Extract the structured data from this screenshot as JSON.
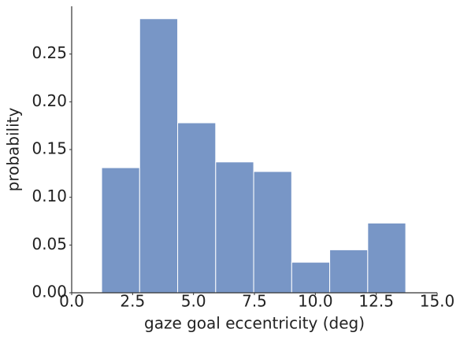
{
  "chart_data": {
    "type": "histogram",
    "xlabel": "gaze goal eccentricity (deg)",
    "ylabel": "probability",
    "bins": [
      1.23,
      2.79,
      4.35,
      5.91,
      7.47,
      9.03,
      10.59,
      12.15,
      13.71
    ],
    "values": [
      0.131,
      0.287,
      0.178,
      0.137,
      0.127,
      0.032,
      0.045,
      0.073
    ],
    "color": "#7896c6",
    "xlim": [
      0,
      15
    ],
    "xticks": [
      {
        "value": 0,
        "label": "0.0"
      },
      2.5,
      {
        "value": 5,
        "label": "5.0"
      },
      7.5,
      {
        "value": 10,
        "label": "10.0"
      },
      12.5,
      {
        "value": 15,
        "label": "15.0"
      }
    ],
    "ylim": [
      0,
      0.3
    ],
    "yticks": [
      {
        "value": 0,
        "label": "0.00"
      },
      {
        "value": 0.05,
        "label": "0.05"
      },
      {
        "value": 0.1,
        "label": "0.10"
      },
      {
        "value": 0.15,
        "label": "0.15"
      },
      {
        "value": 0.2,
        "label": "0.20"
      },
      {
        "value": 0.25,
        "label": "0.25"
      }
    ]
  }
}
